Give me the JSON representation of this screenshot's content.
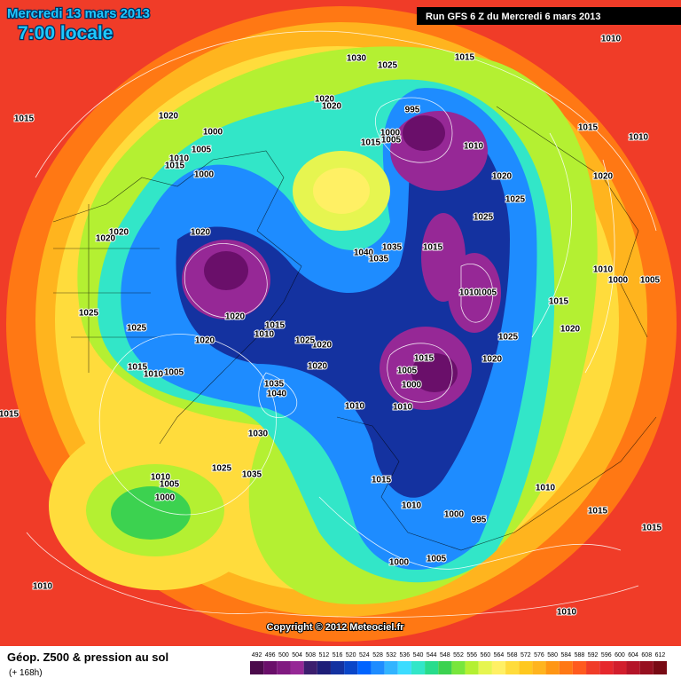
{
  "header": {
    "date": "Mercredi 13 mars 2013",
    "time": "7:00 locale",
    "run": "Run GFS 6 Z du Mercredi 6 mars 2013"
  },
  "map": {
    "copyright": "Copyright © 2012 Meteociel.fr",
    "isobar_labels": [
      "1030",
      "1025",
      "1015",
      "1010",
      "1015",
      "1020",
      "1000",
      "1005",
      "1010",
      "1015",
      "1000",
      "1020",
      "1020",
      "995",
      "1000",
      "1005",
      "1015",
      "1010",
      "1020",
      "1025",
      "1020",
      "1015",
      "1010",
      "1025",
      "1020",
      "1020",
      "1020",
      "1040",
      "1035",
      "1035",
      "1015",
      "1010",
      "1000",
      "1005",
      "1015",
      "1020",
      "1025",
      "1005",
      "1010",
      "1025",
      "1025",
      "1020",
      "1010",
      "1015",
      "1020",
      "1015",
      "1010",
      "1005",
      "1020",
      "1025",
      "1020",
      "1035",
      "1040",
      "1005",
      "1015",
      "1000",
      "1020",
      "1010",
      "1010",
      "1015",
      "1030",
      "1025",
      "1035",
      "1010",
      "1005",
      "1000",
      "1015",
      "1010",
      "1010",
      "1000",
      "995",
      "1015",
      "1015",
      "1005",
      "1000",
      "1010",
      "1010"
    ]
  },
  "legend": {
    "title": "Géop. Z500 & pression au sol",
    "lead_time": "(+ 168h)",
    "scale": [
      {
        "value": 492,
        "color": "#4b0b4b"
      },
      {
        "value": 496,
        "color": "#6a0f6a"
      },
      {
        "value": 500,
        "color": "#801a80"
      },
      {
        "value": 504,
        "color": "#962896"
      },
      {
        "value": 508,
        "color": "#3c1e6e"
      },
      {
        "value": 512,
        "color": "#1e1e78"
      },
      {
        "value": 516,
        "color": "#1432a0"
      },
      {
        "value": 520,
        "color": "#0a46c8"
      },
      {
        "value": 524,
        "color": "#0064ff"
      },
      {
        "value": 528,
        "color": "#1e8cff"
      },
      {
        "value": 532,
        "color": "#32b4ff"
      },
      {
        "value": 536,
        "color": "#3cdcff"
      },
      {
        "value": 540,
        "color": "#32e6c8"
      },
      {
        "value": 544,
        "color": "#28dc8c"
      },
      {
        "value": 548,
        "color": "#3cd250"
      },
      {
        "value": 552,
        "color": "#78e63c"
      },
      {
        "value": 556,
        "color": "#b4f032"
      },
      {
        "value": 560,
        "color": "#e6f550"
      },
      {
        "value": 564,
        "color": "#fff064"
      },
      {
        "value": 568,
        "color": "#ffdc3c"
      },
      {
        "value": 572,
        "color": "#ffc81e"
      },
      {
        "value": 576,
        "color": "#ffb41e"
      },
      {
        "value": 580,
        "color": "#ff9614"
      },
      {
        "value": 584,
        "color": "#ff7814"
      },
      {
        "value": 588,
        "color": "#ff5a1e"
      },
      {
        "value": 592,
        "color": "#f03c28"
      },
      {
        "value": 596,
        "color": "#e6282d"
      },
      {
        "value": 600,
        "color": "#d21e2d"
      },
      {
        "value": 604,
        "color": "#b41428"
      },
      {
        "value": 608,
        "color": "#961020"
      },
      {
        "value": 612,
        "color": "#780a14"
      }
    ]
  }
}
